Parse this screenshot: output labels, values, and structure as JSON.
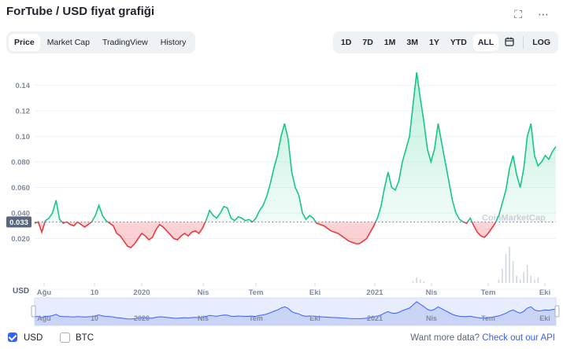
{
  "header": {
    "title": "ForTube / USD fiyat grafiği",
    "fullscreen_icon": "fullscreen-icon",
    "more_icon": "more-dots-icon"
  },
  "tabs": [
    "Price",
    "Market Cap",
    "TradingView",
    "History"
  ],
  "active_tab": "Price",
  "ranges": [
    "1D",
    "7D",
    "1M",
    "3M",
    "1Y",
    "YTD",
    "ALL"
  ],
  "active_range": "ALL",
  "calendar_icon": "calendar-icon",
  "log_label": "LOG",
  "watermark": "CoinMarketCap",
  "colors": {
    "up": "#16c784",
    "down": "#ea3943",
    "nav": "#3861fb"
  },
  "chart_data": {
    "type": "line",
    "y_ticks": [
      0.02,
      0.04,
      0.06,
      0.08,
      0.1,
      0.12,
      0.14
    ],
    "y_tick_labels": [
      "0.020",
      "0.040",
      "0.060",
      "0.080",
      "0.10",
      "0.12",
      "0.14"
    ],
    "ylim": [
      0.0,
      0.155
    ],
    "baseline": 0.033,
    "baseline_label": "0.033",
    "volume_label": "USD",
    "x_tick_labels": [
      "Ağu",
      "10",
      "2020",
      "Nis",
      "Tem",
      "Eki",
      "2021",
      "Nis",
      "Tem",
      "Eki"
    ],
    "grid": true,
    "series": [
      {
        "values": [
          0.032,
          0.033,
          0.025,
          0.034,
          0.036,
          0.04,
          0.05,
          0.035,
          0.032,
          0.033,
          0.031,
          0.03,
          0.033,
          0.031,
          0.029,
          0.031,
          0.033,
          0.038,
          0.046,
          0.038,
          0.034,
          0.032,
          0.03,
          0.024,
          0.022,
          0.018,
          0.014,
          0.013,
          0.016,
          0.02,
          0.024,
          0.022,
          0.019,
          0.021,
          0.027,
          0.031,
          0.029,
          0.026,
          0.023,
          0.02,
          0.019,
          0.022,
          0.024,
          0.022,
          0.025,
          0.026,
          0.024,
          0.028,
          0.034,
          0.042,
          0.038,
          0.036,
          0.04,
          0.045,
          0.044,
          0.036,
          0.034,
          0.037,
          0.036,
          0.034,
          0.035,
          0.033,
          0.036,
          0.042,
          0.046,
          0.053,
          0.063,
          0.075,
          0.085,
          0.1,
          0.11,
          0.098,
          0.072,
          0.06,
          0.054,
          0.04,
          0.035,
          0.038,
          0.036,
          0.032,
          0.031,
          0.03,
          0.028,
          0.026,
          0.025,
          0.024,
          0.022,
          0.02,
          0.018,
          0.017,
          0.016,
          0.016,
          0.018,
          0.02,
          0.025,
          0.03,
          0.036,
          0.045,
          0.06,
          0.072,
          0.06,
          0.058,
          0.065,
          0.08,
          0.09,
          0.1,
          0.125,
          0.15,
          0.13,
          0.112,
          0.09,
          0.08,
          0.09,
          0.11,
          0.095,
          0.08,
          0.065,
          0.05,
          0.04,
          0.035,
          0.033,
          0.032,
          0.036,
          0.03,
          0.025,
          0.022,
          0.021,
          0.024,
          0.028,
          0.032,
          0.038,
          0.048,
          0.058,
          0.075,
          0.085,
          0.07,
          0.06,
          0.075,
          0.1,
          0.11,
          0.085,
          0.077,
          0.08,
          0.085,
          0.082,
          0.088,
          0.092
        ]
      },
      {
        "volume": [
          0,
          0,
          0,
          0,
          0,
          0,
          0,
          0,
          0,
          0,
          0,
          0,
          0,
          0,
          0,
          0,
          0,
          0,
          0,
          0,
          0,
          0,
          0,
          0,
          0,
          0,
          0,
          0,
          0,
          0,
          0,
          0,
          0,
          0,
          0,
          0,
          0,
          0,
          0,
          0,
          0,
          0,
          0,
          0,
          0,
          0,
          0,
          0,
          0,
          0,
          0,
          0,
          0,
          0,
          0,
          0,
          0,
          0,
          0,
          0,
          0,
          0,
          0,
          0,
          0,
          0,
          0,
          0,
          0,
          0,
          0,
          0,
          0,
          0,
          0,
          0,
          0,
          0,
          0,
          0,
          0,
          0,
          0,
          0,
          0,
          0,
          0,
          0,
          0,
          0,
          0,
          0,
          0,
          0,
          0,
          0,
          0,
          0,
          0,
          0,
          0,
          0,
          0,
          0,
          0,
          0,
          0.05,
          0.15,
          0.1,
          0.05,
          0,
          0,
          0,
          0,
          0,
          0,
          0,
          0,
          0,
          0,
          0,
          0,
          0,
          0,
          0,
          0,
          0,
          0,
          0,
          0,
          0.1,
          0.4,
          0.8,
          1.0,
          0.6,
          0.2,
          0.1,
          0.3,
          0.5,
          0.2,
          0.1,
          0.15
        ]
      }
    ]
  },
  "navigator": {
    "x_tick_labels": [
      "Ağu",
      "10",
      "2020",
      "Nis",
      "Tem",
      "Eki",
      "2021",
      "Nis",
      "Tem",
      "Eki"
    ]
  },
  "footer": {
    "usd_label": "USD",
    "btc_label": "BTC",
    "api_text": "Want more data?",
    "api_link": "Check out our API"
  }
}
